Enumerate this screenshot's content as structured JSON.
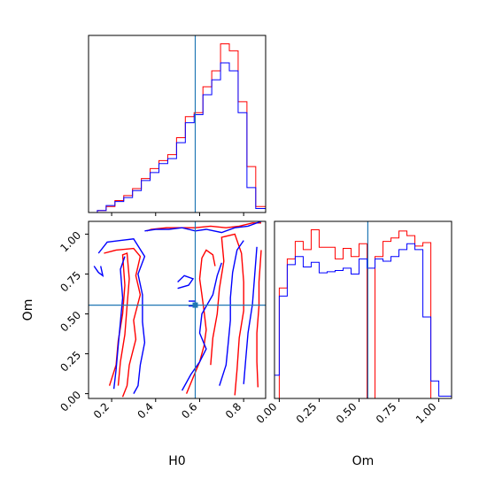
{
  "chart_data": {
    "type": "corner",
    "parameters": [
      "H0",
      "Om"
    ],
    "colors": {
      "run_a": "#ff0000",
      "run_b": "#0000ff",
      "truth": "#1f77b4"
    },
    "truth": {
      "H0": 0.58,
      "Om": 0.555
    },
    "grid": false,
    "legend": "none",
    "axes": {
      "H0": {
        "range": [
          0.095,
          0.9
        ],
        "ticks": [
          0.2,
          0.4,
          0.6,
          0.8
        ],
        "tick_labels": [
          "0.2",
          "0.4",
          "0.6",
          "0.8"
        ],
        "label": "H0"
      },
      "Om": {
        "range": [
          -0.03,
          1.08
        ],
        "ticks": [
          0.0,
          0.25,
          0.5,
          0.75,
          1.0
        ],
        "tick_labels": [
          "0.00",
          "0.25",
          "0.50",
          "0.75",
          "1.00"
        ],
        "label": "Om"
      }
    },
    "hist_H0": {
      "bin_edges": [
        0.095,
        0.135,
        0.175,
        0.215,
        0.255,
        0.295,
        0.335,
        0.375,
        0.415,
        0.455,
        0.495,
        0.535,
        0.575,
        0.615,
        0.655,
        0.695,
        0.735,
        0.775,
        0.815,
        0.855,
        0.9
      ],
      "run_a": [
        0,
        2,
        6,
        12,
        17,
        24,
        34,
        44,
        52,
        58,
        75,
        96,
        100,
        126,
        142,
        169,
        162,
        111,
        46,
        6
      ],
      "run_b": [
        0,
        2,
        7,
        11,
        15,
        22,
        32,
        40,
        49,
        54,
        70,
        90,
        98,
        118,
        133,
        150,
        142,
        100,
        25,
        4
      ]
    },
    "hist_Om": {
      "bin_edges": [
        -0.03,
        0.0,
        0.05,
        0.1,
        0.15,
        0.2,
        0.25,
        0.3,
        0.35,
        0.4,
        0.45,
        0.5,
        0.55,
        0.6,
        0.65,
        0.7,
        0.75,
        0.8,
        0.85,
        0.9,
        0.95,
        1.0,
        1.03,
        1.08
      ],
      "run_a": [
        0,
        95,
        120,
        135,
        128,
        145,
        130,
        130,
        120,
        129,
        122,
        133,
        0,
        122,
        135,
        138,
        144,
        140,
        131,
        134,
        0,
        0,
        0
      ],
      "run_b": [
        20,
        88,
        115,
        122,
        113,
        117,
        108,
        109,
        110,
        112,
        107,
        120,
        112,
        120,
        118,
        122,
        128,
        133,
        128,
        70,
        15,
        2,
        2
      ]
    },
    "contours_2d": {
      "run_a": [
        [
          [
            0.165,
            0.88
          ],
          [
            0.22,
            0.9
          ],
          [
            0.3,
            0.91
          ],
          [
            0.33,
            0.86
          ],
          [
            0.31,
            0.74
          ],
          [
            0.33,
            0.62
          ],
          [
            0.3,
            0.46
          ],
          [
            0.31,
            0.34
          ],
          [
            0.28,
            0.18
          ],
          [
            0.27,
            0.05
          ],
          [
            0.25,
            -0.02
          ]
        ],
        [
          [
            0.19,
            0.05
          ],
          [
            0.22,
            0.18
          ],
          [
            0.23,
            0.33
          ],
          [
            0.25,
            0.5
          ],
          [
            0.26,
            0.68
          ],
          [
            0.25,
            0.87
          ],
          [
            0.27,
            0.88
          ],
          [
            0.28,
            0.72
          ],
          [
            0.27,
            0.55
          ],
          [
            0.26,
            0.37
          ],
          [
            0.24,
            0.2
          ],
          [
            0.23,
            0.05
          ]
        ],
        [
          [
            0.36,
            1.02
          ],
          [
            0.38,
            1.03
          ],
          [
            0.45,
            1.04
          ],
          [
            0.52,
            1.04
          ],
          [
            0.58,
            1.04
          ],
          [
            0.65,
            1.05
          ],
          [
            0.72,
            1.04
          ],
          [
            0.78,
            1.05
          ],
          [
            0.84,
            1.07
          ],
          [
            0.88,
            1.07
          ]
        ],
        [
          [
            0.865,
            0.04
          ],
          [
            0.86,
            0.2
          ],
          [
            0.86,
            0.38
          ],
          [
            0.87,
            0.55
          ],
          [
            0.87,
            0.7
          ],
          [
            0.88,
            0.9
          ]
        ],
        [
          [
            0.65,
            0.18
          ],
          [
            0.66,
            0.35
          ],
          [
            0.68,
            0.5
          ],
          [
            0.69,
            0.66
          ],
          [
            0.71,
            0.83
          ],
          [
            0.7,
            0.98
          ],
          [
            0.76,
            1.0
          ],
          [
            0.79,
            0.88
          ],
          [
            0.8,
            0.7
          ],
          [
            0.8,
            0.52
          ],
          [
            0.78,
            0.35
          ],
          [
            0.77,
            0.15
          ],
          [
            0.76,
            -0.01
          ]
        ],
        [
          [
            0.54,
            0.0
          ],
          [
            0.57,
            0.1
          ],
          [
            0.6,
            0.2
          ],
          [
            0.62,
            0.3
          ],
          [
            0.63,
            0.4
          ],
          [
            0.62,
            0.52
          ],
          [
            0.61,
            0.62
          ],
          [
            0.6,
            0.72
          ],
          [
            0.61,
            0.85
          ],
          [
            0.63,
            0.9
          ],
          [
            0.66,
            0.87
          ],
          [
            0.67,
            0.8
          ]
        ]
      ],
      "run_b": [
        [
          [
            0.14,
            0.88
          ],
          [
            0.18,
            0.95
          ],
          [
            0.24,
            0.96
          ],
          [
            0.3,
            0.97
          ],
          [
            0.35,
            0.86
          ],
          [
            0.32,
            0.75
          ],
          [
            0.34,
            0.62
          ],
          [
            0.34,
            0.45
          ],
          [
            0.35,
            0.32
          ],
          [
            0.33,
            0.18
          ],
          [
            0.32,
            0.05
          ],
          [
            0.3,
            0.0
          ]
        ],
        [
          [
            0.12,
            0.8
          ],
          [
            0.14,
            0.76
          ],
          [
            0.16,
            0.74
          ],
          [
            0.15,
            0.8
          ]
        ],
        [
          [
            0.21,
            0.03
          ],
          [
            0.22,
            0.15
          ],
          [
            0.23,
            0.3
          ],
          [
            0.24,
            0.45
          ],
          [
            0.25,
            0.6
          ],
          [
            0.24,
            0.78
          ],
          [
            0.26,
            0.86
          ]
        ],
        [
          [
            0.35,
            1.02
          ],
          [
            0.4,
            1.03
          ],
          [
            0.46,
            1.03
          ],
          [
            0.52,
            1.04
          ],
          [
            0.58,
            1.02
          ],
          [
            0.63,
            1.03
          ],
          [
            0.7,
            1.01
          ],
          [
            0.76,
            1.04
          ],
          [
            0.82,
            1.05
          ],
          [
            0.88,
            1.08
          ]
        ],
        [
          [
            0.52,
            0.02
          ],
          [
            0.56,
            0.12
          ],
          [
            0.6,
            0.2
          ],
          [
            0.63,
            0.28
          ],
          [
            0.6,
            0.38
          ],
          [
            0.61,
            0.5
          ],
          [
            0.66,
            0.62
          ],
          [
            0.68,
            0.74
          ],
          [
            0.7,
            0.82
          ]
        ],
        [
          [
            0.69,
            0.05
          ],
          [
            0.72,
            0.18
          ],
          [
            0.73,
            0.32
          ],
          [
            0.74,
            0.46
          ],
          [
            0.74,
            0.6
          ],
          [
            0.75,
            0.76
          ],
          [
            0.77,
            0.9
          ],
          [
            0.8,
            0.96
          ]
        ],
        [
          [
            0.8,
            0.06
          ],
          [
            0.81,
            0.22
          ],
          [
            0.82,
            0.38
          ],
          [
            0.84,
            0.56
          ],
          [
            0.85,
            0.74
          ],
          [
            0.86,
            0.92
          ]
        ],
        [
          [
            0.5,
            0.66
          ],
          [
            0.55,
            0.68
          ],
          [
            0.57,
            0.72
          ],
          [
            0.53,
            0.74
          ],
          [
            0.5,
            0.7
          ]
        ],
        [
          [
            0.55,
            0.55
          ],
          [
            0.58,
            0.55
          ],
          [
            0.58,
            0.58
          ],
          [
            0.55,
            0.58
          ]
        ]
      ]
    }
  }
}
